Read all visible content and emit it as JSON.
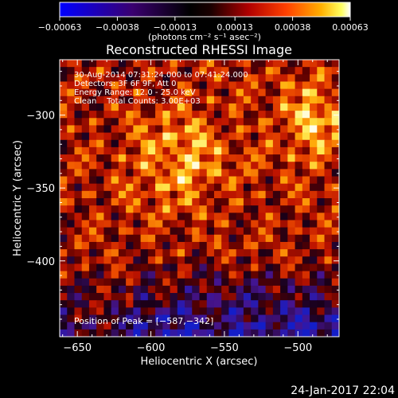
{
  "chart_data": {
    "type": "heatmap",
    "title": "Reconstructed RHESSI Image",
    "xlabel": "Heliocentric X (arcsec)",
    "ylabel": "Heliocentric Y (arcsec)",
    "xlim": [
      -662,
      -472
    ],
    "ylim": [
      -452,
      -262
    ],
    "x_ticks": [
      -650,
      -600,
      -550,
      -500
    ],
    "y_ticks": [
      -300,
      -350,
      -400
    ],
    "x_tick_labels": [
      "−650",
      "−600",
      "−550",
      "−500"
    ],
    "y_tick_labels": [
      "−300",
      "−350",
      "−400"
    ],
    "colorbar": {
      "min": -0.00063,
      "max": 0.00063,
      "ticks": [
        -0.00063,
        -0.00038,
        -0.00013,
        0.00013,
        0.00038,
        0.00063
      ],
      "tick_labels": [
        "−0.00063",
        "−0.00038",
        "−0.00013",
        "0.00013",
        "0.00038",
        "0.00063"
      ],
      "units": "(photons cm⁻² s⁻¹ asec⁻²)"
    },
    "annotations": [
      "30-Aug-2014 07:31:24.000 to 07:41:24.000",
      "Detectors: 3F 6F 9F, Att 0",
      "Energy Range: 12.0 - 25.0 keV",
      "Clean    Total Counts: 3.00E+03"
    ],
    "peak": {
      "label": "Position of Peak = [−587,−342]",
      "x": -587,
      "y": -342
    },
    "colors": {
      "low": "#0000ff",
      "mid_low": "#000000",
      "mid": "#ff0000",
      "high": "#ffff00",
      "top": "#ffffff"
    }
  },
  "footer": {
    "timestamp": "24-Jan-2017 22:04"
  }
}
